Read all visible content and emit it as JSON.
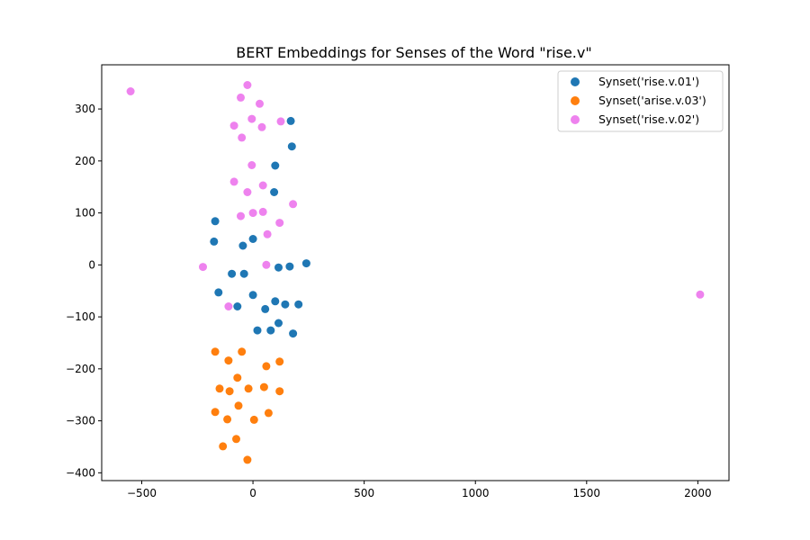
{
  "chart_data": {
    "type": "scatter",
    "title": "BERT Embeddings for Senses of the Word \"rise.v\"",
    "xlabel": "",
    "ylabel": "",
    "xlim": [
      -680,
      2140
    ],
    "ylim": [
      -415,
      385
    ],
    "xticks": [
      -500,
      0,
      500,
      1000,
      1500,
      2000
    ],
    "yticks": [
      -400,
      -300,
      -200,
      -100,
      0,
      100,
      200,
      300
    ],
    "grid": false,
    "legend_position": "top-right",
    "series": [
      {
        "name": "Synset('rise.v.01')",
        "color": "#1f77b4",
        "points": [
          [
            170,
            277
          ],
          [
            175,
            228
          ],
          [
            100,
            191
          ],
          [
            95,
            140
          ],
          [
            -170,
            84
          ],
          [
            -175,
            45
          ],
          [
            -45,
            37
          ],
          [
            0,
            50
          ],
          [
            240,
            3
          ],
          [
            165,
            -3
          ],
          [
            115,
            -5
          ],
          [
            -95,
            -17
          ],
          [
            -40,
            -17
          ],
          [
            -155,
            -53
          ],
          [
            0,
            -58
          ],
          [
            100,
            -70
          ],
          [
            145,
            -76
          ],
          [
            205,
            -76
          ],
          [
            -70,
            -80
          ],
          [
            55,
            -85
          ],
          [
            115,
            -112
          ],
          [
            20,
            -126
          ],
          [
            80,
            -126
          ],
          [
            180,
            -132
          ]
        ]
      },
      {
        "name": "Synset('arise.v.03')",
        "color": "#ff7f0e",
        "points": [
          [
            -170,
            -167
          ],
          [
            -50,
            -167
          ],
          [
            -110,
            -184
          ],
          [
            120,
            -186
          ],
          [
            60,
            -195
          ],
          [
            -70,
            -217
          ],
          [
            -150,
            -238
          ],
          [
            -20,
            -238
          ],
          [
            -105,
            -243
          ],
          [
            50,
            -235
          ],
          [
            120,
            -243
          ],
          [
            -65,
            -271
          ],
          [
            -170,
            -283
          ],
          [
            70,
            -285
          ],
          [
            -115,
            -297
          ],
          [
            5,
            -298
          ],
          [
            -75,
            -335
          ],
          [
            -135,
            -349
          ],
          [
            -25,
            -375
          ]
        ]
      },
      {
        "name": "Synset('rise.v.02')",
        "color": "#ee82ee",
        "points": [
          [
            -550,
            334
          ],
          [
            -25,
            346
          ],
          [
            -55,
            322
          ],
          [
            30,
            310
          ],
          [
            -5,
            281
          ],
          [
            125,
            276
          ],
          [
            -85,
            268
          ],
          [
            40,
            265
          ],
          [
            -50,
            245
          ],
          [
            -5,
            192
          ],
          [
            -85,
            160
          ],
          [
            45,
            153
          ],
          [
            -25,
            140
          ],
          [
            180,
            117
          ],
          [
            0,
            100
          ],
          [
            45,
            102
          ],
          [
            -55,
            94
          ],
          [
            120,
            81
          ],
          [
            65,
            59
          ],
          [
            -225,
            -4
          ],
          [
            60,
            0
          ],
          [
            -110,
            -80
          ],
          [
            2010,
            -57
          ]
        ]
      }
    ]
  }
}
